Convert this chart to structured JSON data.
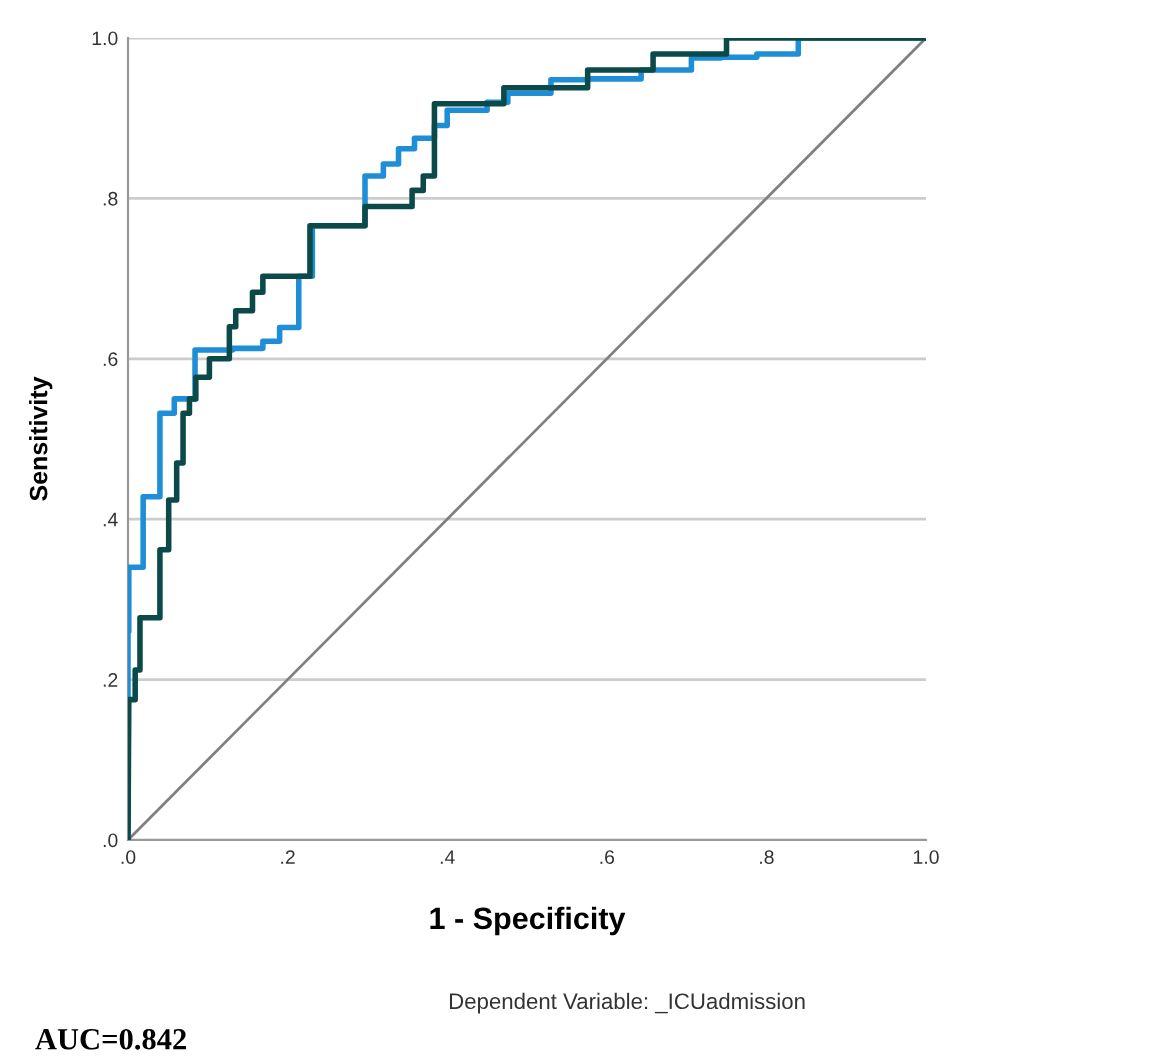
{
  "chart_data": {
    "type": "line",
    "xlabel": "1 - Specificity",
    "ylabel": "Sensitivity",
    "xlim": [
      0,
      1
    ],
    "ylim": [
      0,
      1
    ],
    "xticks": [
      {
        "value": 0,
        "label": ".0"
      },
      {
        "value": 0.2,
        "label": ".2"
      },
      {
        "value": 0.4,
        "label": ".4"
      },
      {
        "value": 0.6,
        "label": ".6"
      },
      {
        "value": 0.8,
        "label": ".8"
      },
      {
        "value": 1,
        "label": "1.0"
      }
    ],
    "yticks": [
      {
        "value": 0,
        "label": ".0"
      },
      {
        "value": 0.2,
        "label": ".2"
      },
      {
        "value": 0.4,
        "label": ".4"
      },
      {
        "value": 0.6,
        "label": ".6"
      },
      {
        "value": 0.8,
        "label": ".8"
      },
      {
        "value": 1,
        "label": "1.0"
      }
    ],
    "grid": "y",
    "marker": "none",
    "line_style": "solid",
    "series": [
      {
        "color": "#808080",
        "x": [
          0,
          1
        ],
        "values": [
          0,
          1
        ]
      },
      {
        "color": "#1e8fd6",
        "x": [
          0,
          0,
          0.001,
          0.001,
          0.019,
          0.019,
          0.04,
          0.04,
          0.058,
          0.058,
          0.084,
          0.084,
          0.131,
          0.131,
          0.169,
          0.169,
          0.19,
          0.19,
          0.214,
          0.214,
          0.231,
          0.231,
          0.297,
          0.297,
          0.32,
          0.32,
          0.339,
          0.339,
          0.359,
          0.359,
          0.384,
          0.384,
          0.4,
          0.4,
          0.45,
          0.45,
          0.476,
          0.476,
          0.53,
          0.53,
          0.576,
          0.576,
          0.643,
          0.643,
          0.706,
          0.706,
          0.743,
          0.743,
          0.788,
          0.788,
          0.84,
          0.84,
          1
        ],
        "values": [
          0,
          0.26,
          0.26,
          0.34,
          0.34,
          0.428,
          0.428,
          0.532,
          0.532,
          0.55,
          0.55,
          0.611,
          0.611,
          0.613,
          0.613,
          0.622,
          0.622,
          0.639,
          0.639,
          0.703,
          0.703,
          0.766,
          0.766,
          0.828,
          0.828,
          0.843,
          0.843,
          0.862,
          0.862,
          0.875,
          0.875,
          0.891,
          0.891,
          0.91,
          0.91,
          0.92,
          0.92,
          0.931,
          0.931,
          0.948,
          0.948,
          0.949,
          0.949,
          0.96,
          0.96,
          0.975,
          0.975,
          0.976,
          0.976,
          0.98,
          0.98,
          1,
          1
        ]
      },
      {
        "color": "#0c4a4a",
        "x": [
          0,
          0.001,
          0.009,
          0.009,
          0.015,
          0.015,
          0.04,
          0.04,
          0.051,
          0.051,
          0.061,
          0.061,
          0.069,
          0.069,
          0.077,
          0.077,
          0.085,
          0.085,
          0.102,
          0.102,
          0.127,
          0.127,
          0.135,
          0.135,
          0.156,
          0.156,
          0.169,
          0.169,
          0.228,
          0.228,
          0.297,
          0.297,
          0.356,
          0.356,
          0.37,
          0.37,
          0.384,
          0.384,
          0.471,
          0.471,
          0.576,
          0.576,
          0.658,
          0.658,
          0.75,
          0.75,
          1
        ],
        "values": [
          0,
          0.175,
          0.175,
          0.212,
          0.212,
          0.277,
          0.277,
          0.362,
          0.362,
          0.424,
          0.424,
          0.47,
          0.47,
          0.532,
          0.532,
          0.55,
          0.55,
          0.577,
          0.577,
          0.6,
          0.6,
          0.64,
          0.64,
          0.66,
          0.66,
          0.683,
          0.683,
          0.703,
          0.703,
          0.766,
          0.766,
          0.79,
          0.79,
          0.81,
          0.81,
          0.828,
          0.828,
          0.918,
          0.918,
          0.938,
          0.938,
          0.96,
          0.96,
          0.98,
          0.98,
          1,
          1
        ]
      }
    ],
    "annotations": [
      "Dependent Variable: _ICUadmission",
      "AUC=0.842"
    ]
  }
}
